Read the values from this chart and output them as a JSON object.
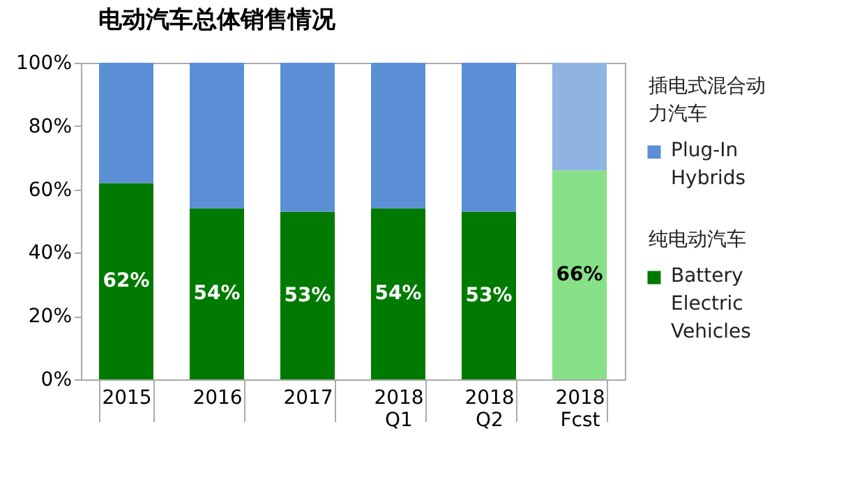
{
  "chart_data": {
    "type": "bar",
    "title": "电动汽车总体销售情况",
    "categories": [
      "2015",
      "2016",
      "2017",
      "2018 Q1",
      "2018 Q2",
      "2018 Fcst"
    ],
    "stacked": true,
    "series": [
      {
        "name": "Battery Electric Vehicles",
        "color": "#007a00",
        "colors": [
          "#007a00",
          "#007a00",
          "#007a00",
          "#007a00",
          "#007a00",
          "#88e088"
        ],
        "values": [
          62,
          54,
          53,
          54,
          53,
          66
        ],
        "value_labels": [
          "62%",
          "54%",
          "53%",
          "54%",
          "53%",
          "66%"
        ]
      },
      {
        "name": "Plug-In Hybrids",
        "color": "#5b8fd6",
        "colors": [
          "#5b8fd6",
          "#5b8fd6",
          "#5b8fd6",
          "#5b8fd6",
          "#5b8fd6",
          "#8fb4e3"
        ],
        "values": [
          38,
          46,
          47,
          46,
          47,
          34
        ]
      }
    ],
    "annotations": [
      "纯电动汽车",
      "插电式混合动力汽车"
    ],
    "ylim": [
      0,
      100
    ],
    "yticks": [
      {
        "value": 0,
        "label": "0%"
      },
      {
        "value": 20,
        "label": "20%"
      },
      {
        "value": 40,
        "label": "40%"
      },
      {
        "value": 60,
        "label": "60%"
      },
      {
        "value": 80,
        "label": "80%"
      },
      {
        "value": 100,
        "label": "100%"
      }
    ],
    "legend": "right"
  }
}
